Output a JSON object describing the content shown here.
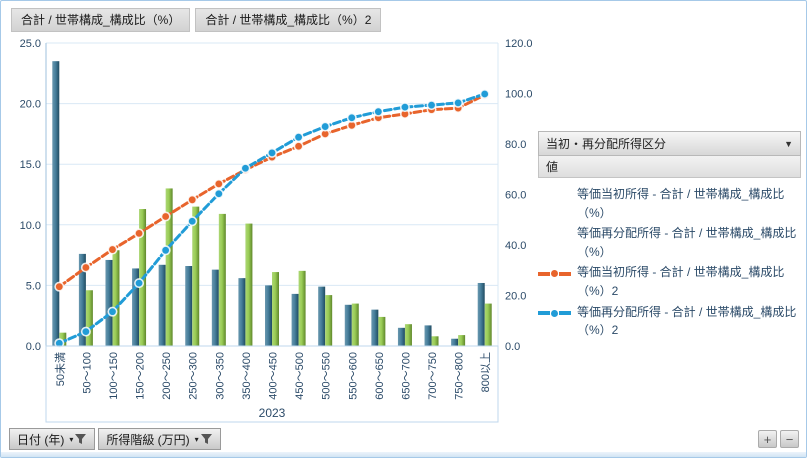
{
  "tabs": [
    {
      "label": "合計 / 世帯構成_構成比（%）"
    },
    {
      "label": "合計 / 世帯構成_構成比（%）2"
    }
  ],
  "legend": {
    "field_header": "当初・再分配所得区分",
    "values_header": "値"
  },
  "icons": {
    "dropdown_arrow": "▼",
    "mini_dropdown_arrow": "▾"
  },
  "filters": [
    {
      "label": "日付 (年)"
    },
    {
      "label": "所得階級 (万円)"
    }
  ],
  "zoom_buttons": {
    "plus": "+",
    "minus": "−"
  },
  "colors": {
    "bar_initial_income": "#2E6E8E",
    "bar_redistributed_income": "#8CC63F",
    "line_initial_income": "#E8642C",
    "line_redistributed_income": "#219CD7",
    "gridline": "#D9E8F5",
    "axis_line": "#9FC2DE",
    "axis_text": "#2B4A68",
    "label_box_border": "#BFD7EC"
  },
  "chart_data": {
    "type": "bar",
    "subtype": "pareto-combo (bars on left axis + cumulative dashed lines on right axis)",
    "categories": [
      "50未満",
      "50〜100",
      "100〜150",
      "150〜200",
      "200〜250",
      "250〜300",
      "300〜350",
      "350〜400",
      "400〜450",
      "450〜500",
      "500〜550",
      "550〜600",
      "600〜650",
      "650〜700",
      "700〜750",
      "750〜800",
      "800以上"
    ],
    "x_group_label": "2023",
    "xlabel": "所得階級 (万円)",
    "left_axis": {
      "min": 0,
      "max": 25,
      "ticks": [
        "0.0",
        "5.0",
        "10.0",
        "15.0",
        "20.0",
        "25.0"
      ]
    },
    "right_axis": {
      "min": 0,
      "max": 120,
      "ticks": [
        "0.0",
        "20.0",
        "40.0",
        "60.0",
        "80.0",
        "100.0",
        "120.0"
      ]
    },
    "grid": true,
    "legend_position": "right",
    "series": [
      {
        "name": "等価当初所得 - 合計 / 世帯構成_構成比（%）",
        "type": "bar",
        "axis": "left",
        "color": "#2E6E8E",
        "values": [
          23.5,
          7.6,
          7.1,
          6.4,
          6.7,
          6.6,
          6.3,
          5.6,
          5.0,
          4.3,
          4.9,
          3.4,
          3.0,
          1.5,
          1.7,
          0.6,
          5.2
        ]
      },
      {
        "name": "等価再分配所得 - 合計 / 世帯構成_構成比（%）",
        "type": "bar",
        "axis": "left",
        "color": "#8CC63F",
        "values": [
          1.1,
          4.6,
          7.9,
          11.3,
          13.0,
          11.5,
          10.9,
          10.1,
          6.1,
          6.2,
          4.2,
          3.5,
          2.4,
          1.8,
          0.8,
          0.9,
          3.5
        ]
      },
      {
        "name": "等価当初所得 - 合計 / 世帯構成_構成比（%）2",
        "type": "line",
        "axis": "right",
        "color": "#E8642C",
        "values": [
          23.5,
          31.1,
          38.2,
          44.6,
          51.3,
          57.9,
          64.2,
          69.8,
          74.8,
          79.1,
          84.0,
          87.4,
          90.4,
          91.9,
          93.6,
          94.2,
          99.4
        ]
      },
      {
        "name": "等価再分配所得 - 合計 / 世帯構成_構成比（%）2",
        "type": "line",
        "axis": "right",
        "color": "#219CD7",
        "values": [
          1.1,
          5.7,
          13.6,
          24.9,
          37.9,
          49.4,
          60.3,
          70.4,
          76.5,
          82.7,
          86.9,
          90.4,
          92.8,
          94.6,
          95.4,
          96.3,
          99.8
        ]
      }
    ]
  }
}
